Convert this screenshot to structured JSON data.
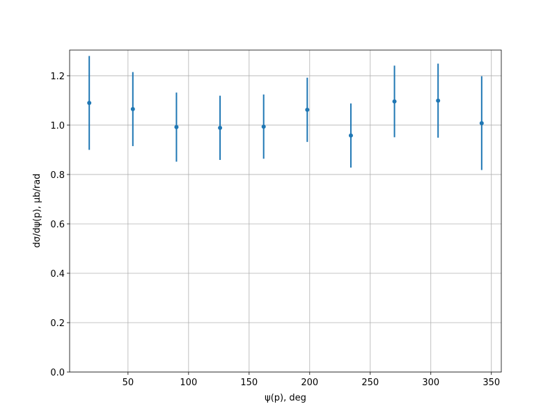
{
  "chart_data": {
    "type": "errorbar",
    "xlabel": "ψ(p), deg",
    "ylabel": "dσ/dψ(p), μb/rad",
    "x": [
      18,
      54,
      90,
      126,
      162,
      198,
      234,
      270,
      306,
      342
    ],
    "series": [
      {
        "color": "#1f77b4",
        "values": [
          1.09,
          1.065,
          0.992,
          0.989,
          0.994,
          1.062,
          0.958,
          1.096,
          1.099,
          1.008
        ],
        "errors": [
          0.19,
          0.15,
          0.14,
          0.13,
          0.13,
          0.13,
          0.13,
          0.145,
          0.15,
          0.19
        ]
      }
    ],
    "xlim": [
      1.8,
      358.2
    ],
    "xticks": [
      50,
      100,
      150,
      200,
      250,
      300,
      350
    ],
    "ylim": [
      0,
      1.304
    ],
    "yticks": [
      {
        "value": 0,
        "label": "0.0"
      },
      0.2,
      0.4,
      0.6,
      0.8,
      {
        "value": 1,
        "label": "1.0"
      },
      1.2
    ],
    "grid": true
  }
}
